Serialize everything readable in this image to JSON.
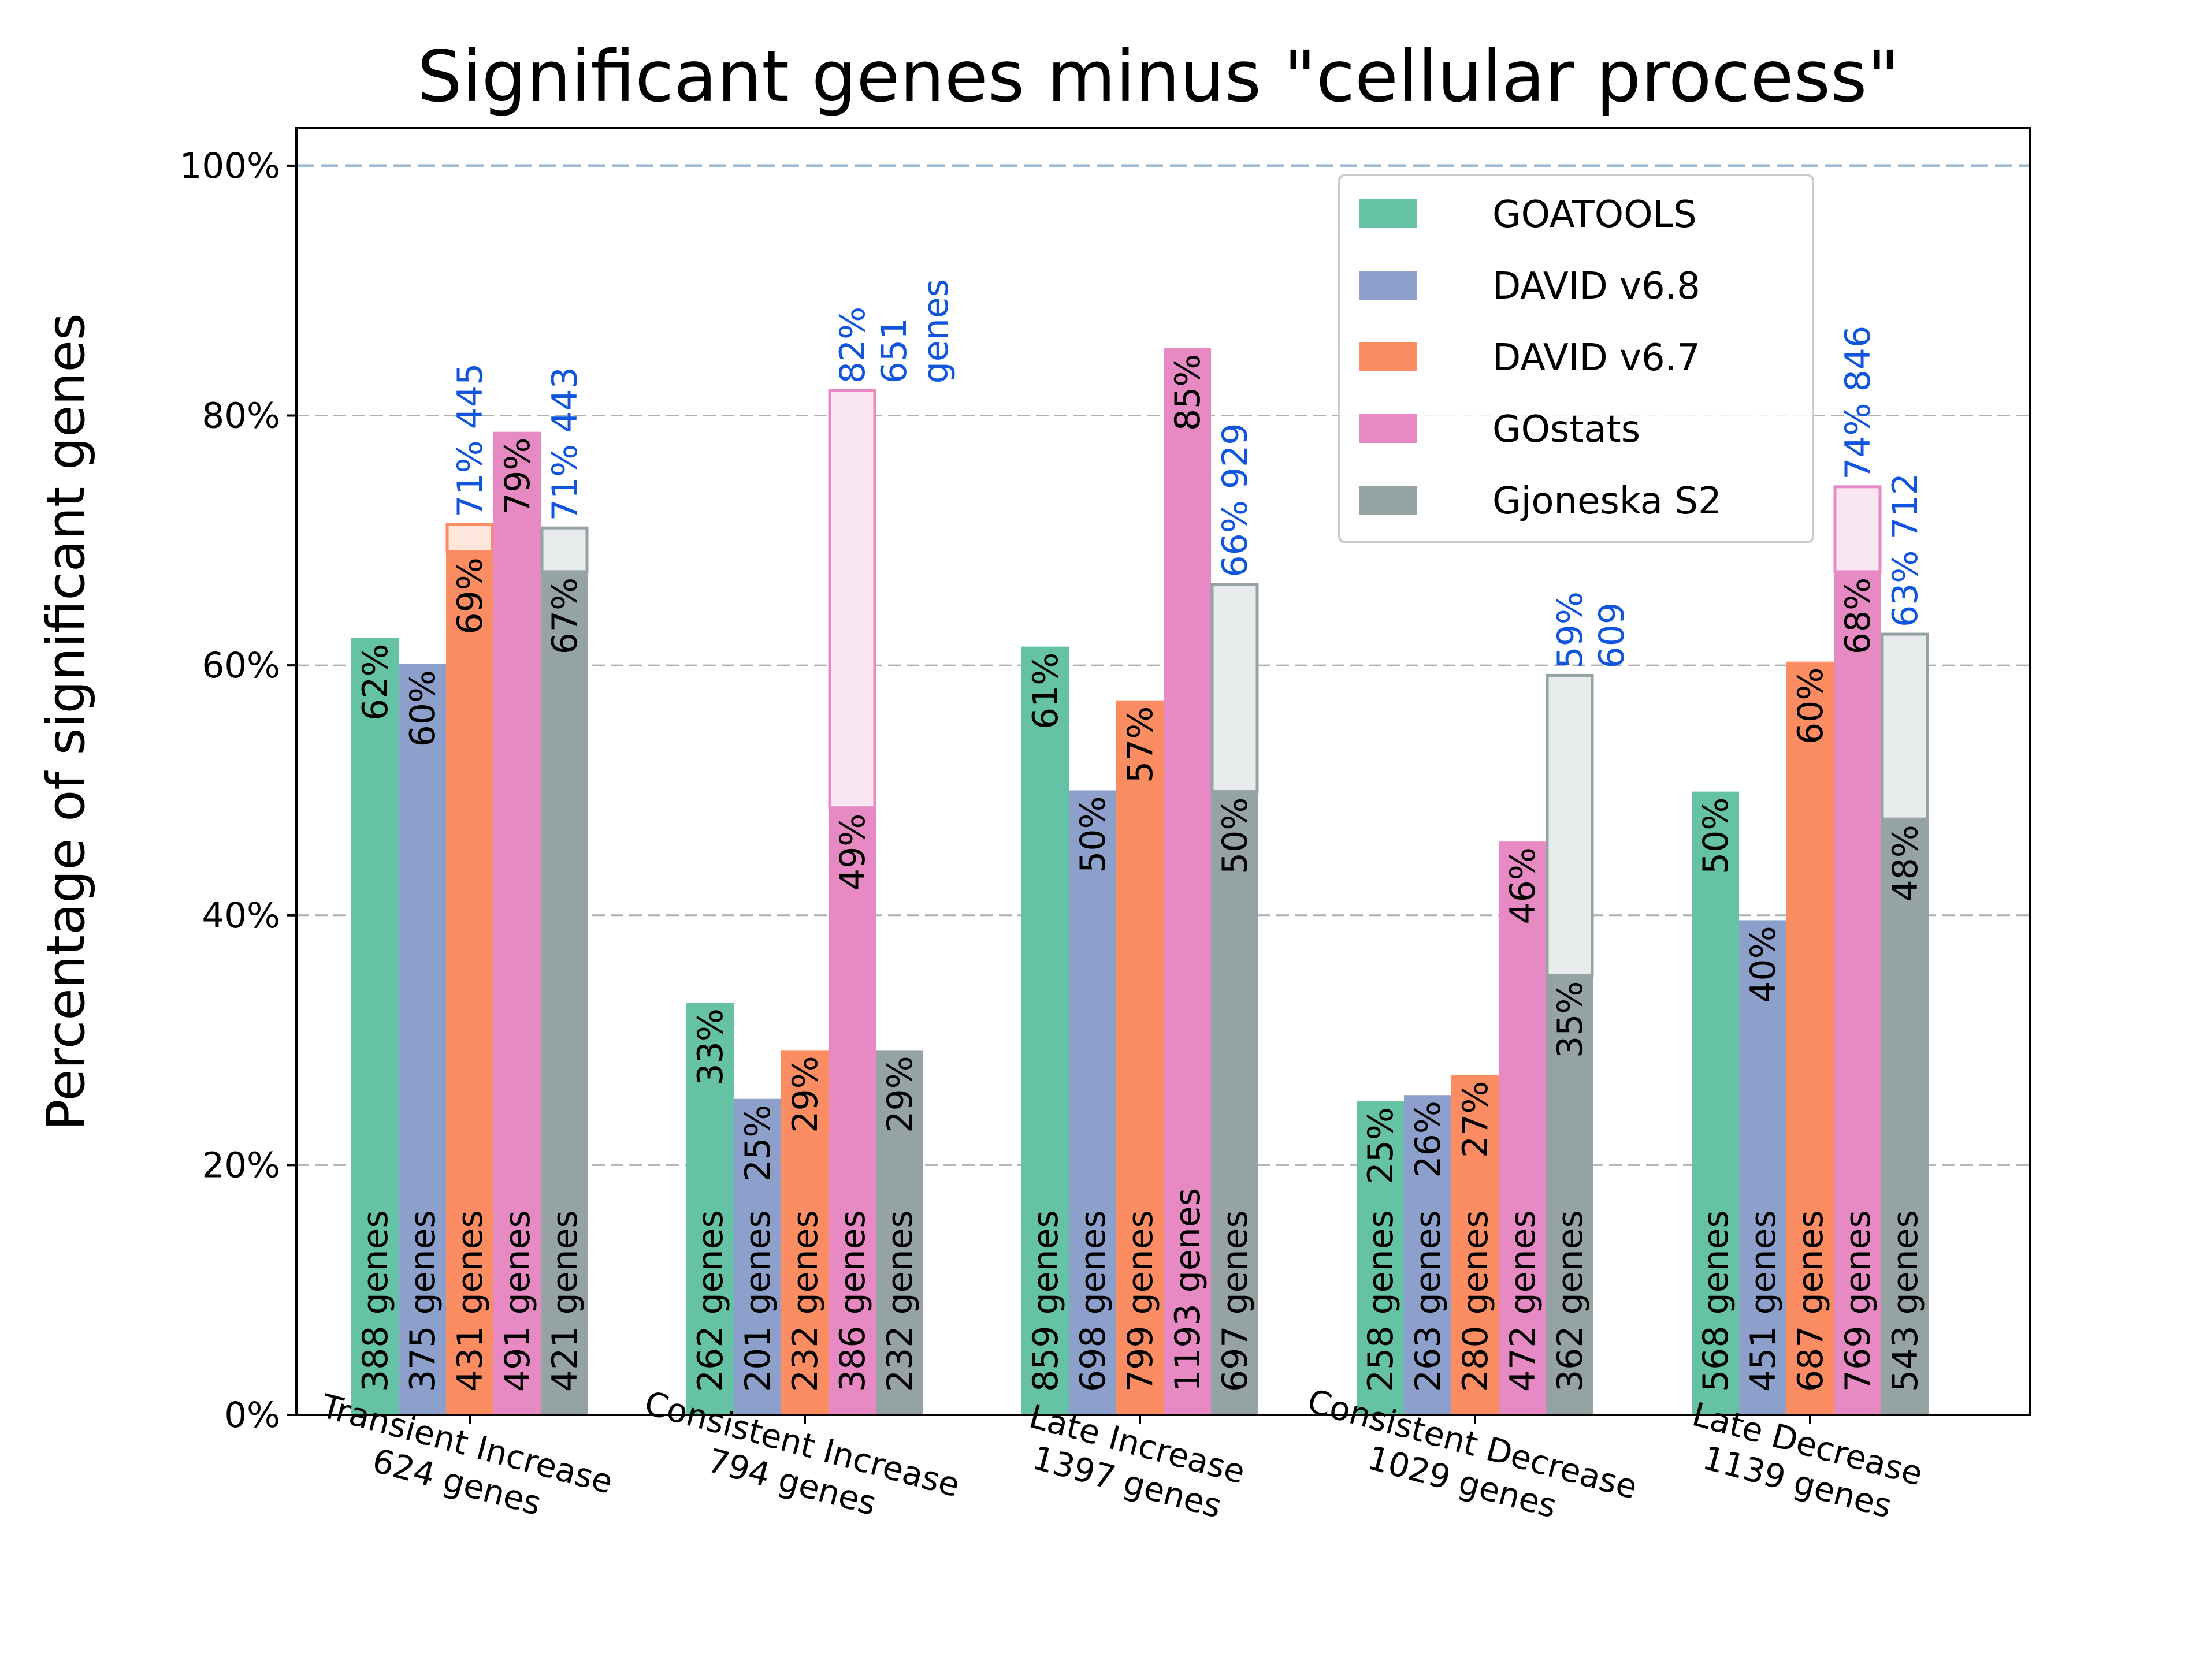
{
  "chart_data": {
    "type": "bar",
    "title": "Significant genes minus \"cellular process\"",
    "ylabel": "Percentage of significant genes",
    "xlabel": "",
    "ylim": [
      0,
      103
    ],
    "yticks": [
      0,
      20,
      40,
      60,
      80,
      100
    ],
    "ytick_labels": [
      "0%",
      "20%",
      "40%",
      "60%",
      "80%",
      "100%"
    ],
    "reference_line": 100,
    "grid": "horizontal-dashed",
    "legend_placement": "top-right",
    "categories": [
      {
        "name": "Transient Increase",
        "subtitle": "624 genes"
      },
      {
        "name": "Consistent Increase",
        "subtitle": "794 genes"
      },
      {
        "name": "Late Increase",
        "subtitle": "1397 genes"
      },
      {
        "name": "Consistent Decrease",
        "subtitle": "1029 genes"
      },
      {
        "name": "Late Decrease",
        "subtitle": "1139 genes"
      }
    ],
    "series": [
      {
        "name": "GOATOOLS",
        "color": "#66c2a5",
        "values": [
          62.2,
          33.0,
          61.5,
          25.1,
          49.9
        ],
        "pct_labels": [
          "62%",
          "33%",
          "61%",
          "25%",
          "50%"
        ],
        "gene_labels": [
          "388 genes",
          "262 genes",
          "859 genes",
          "258 genes",
          "568 genes"
        ],
        "extended": [
          null,
          null,
          null,
          null,
          null
        ],
        "ext_labels": [
          null,
          null,
          null,
          null,
          null
        ]
      },
      {
        "name": "DAVID v6.8",
        "color": "#8da0cb",
        "values": [
          60.1,
          25.3,
          50.0,
          25.6,
          39.6
        ],
        "pct_labels": [
          "60%",
          "25%",
          "50%",
          "26%",
          "40%"
        ],
        "gene_labels": [
          "375 genes",
          "201 genes",
          "698 genes",
          "263 genes",
          "451 genes"
        ],
        "extended": [
          null,
          null,
          null,
          null,
          null
        ],
        "ext_labels": [
          null,
          null,
          null,
          null,
          null
        ]
      },
      {
        "name": "DAVID v6.7",
        "color": "#fc8d62",
        "values": [
          69.1,
          29.2,
          57.2,
          27.2,
          60.3
        ],
        "pct_labels": [
          "69%",
          "29%",
          "57%",
          "27%",
          "60%"
        ],
        "gene_labels": [
          "431 genes",
          "232 genes",
          "799 genes",
          "280 genes",
          "687 genes"
        ],
        "extended": [
          71.3,
          null,
          null,
          null,
          null
        ],
        "ext_labels": [
          "71% 445",
          null,
          null,
          null,
          null
        ]
      },
      {
        "name": "GOstats",
        "color": "#e78ac3",
        "values": [
          78.7,
          48.6,
          85.4,
          45.9,
          67.5
        ],
        "pct_labels": [
          "79%",
          "49%",
          "85%",
          "46%",
          "68%"
        ],
        "gene_labels": [
          "491 genes",
          "386 genes",
          "1193 genes",
          "472 genes",
          "769 genes"
        ],
        "extended": [
          null,
          82.0,
          null,
          null,
          74.3
        ],
        "ext_labels": [
          null,
          "82%\n651\ngenes",
          null,
          null,
          "74% 846"
        ]
      },
      {
        "name": "Gjoneska S2",
        "color": "#95a3a4",
        "values": [
          67.5,
          29.2,
          49.9,
          35.2,
          47.7
        ],
        "pct_labels": [
          "67%",
          "29%",
          "50%",
          "35%",
          "48%"
        ],
        "gene_labels": [
          "421 genes",
          "232 genes",
          "697 genes",
          "362 genes",
          "543 genes"
        ],
        "extended": [
          71.0,
          null,
          66.5,
          59.2,
          62.5
        ],
        "ext_labels": [
          "71% 443",
          null,
          "66% 929",
          "59%\n609",
          "63% 712"
        ]
      }
    ]
  }
}
